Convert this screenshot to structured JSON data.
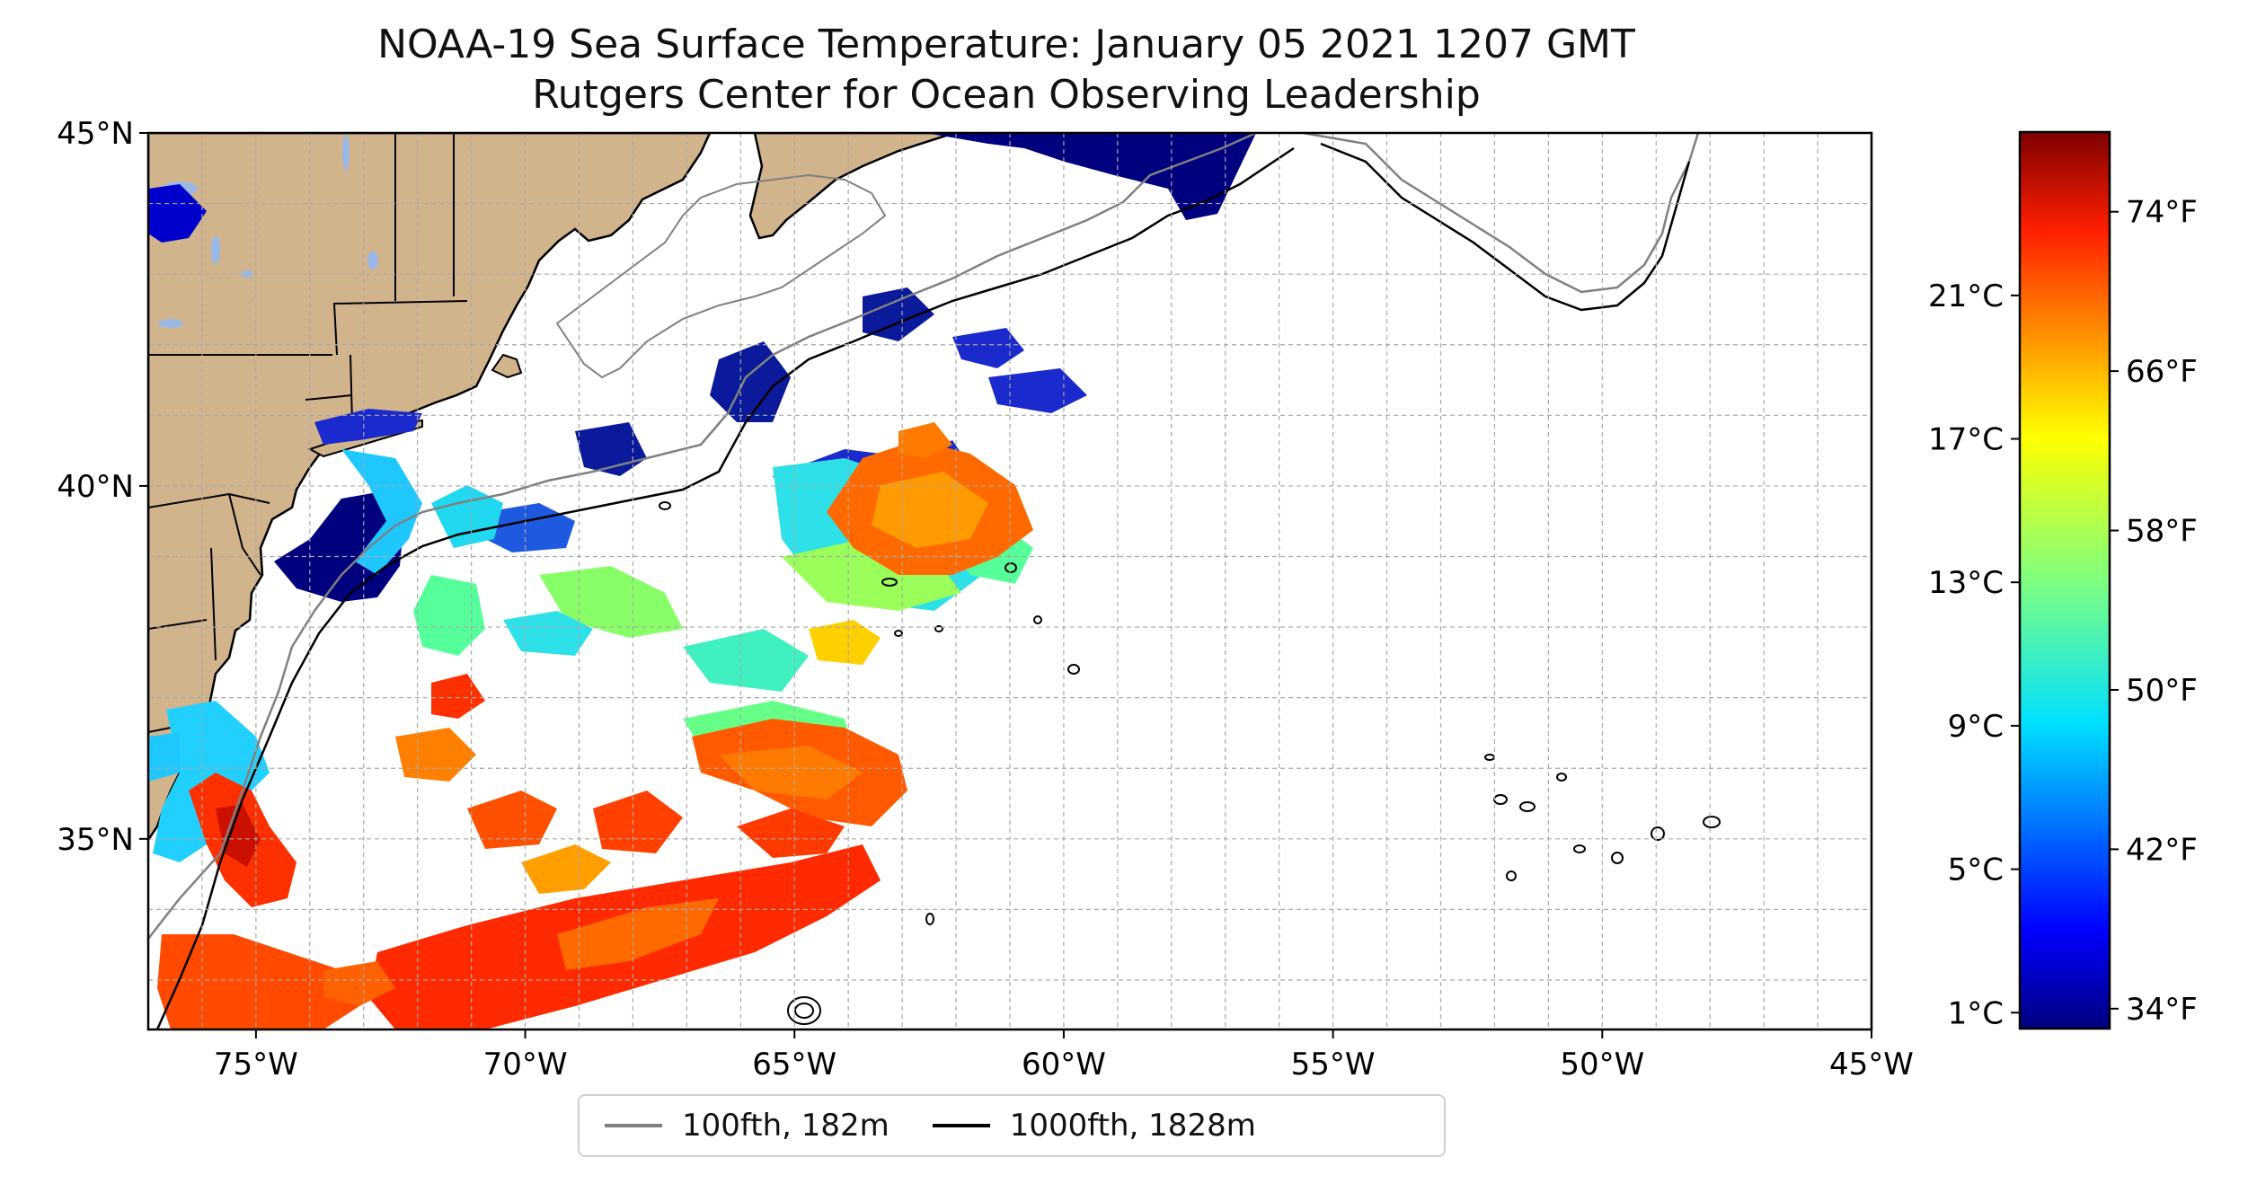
{
  "title": {
    "line1": "NOAA-19 Sea Surface Temperature: January 05 2021 1207 GMT",
    "line2": "Rutgers Center for Ocean Observing Leadership"
  },
  "map": {
    "lon_range": [
      -77,
      -45
    ],
    "lat_range": [
      32.3,
      45
    ],
    "lat_ticks": [
      {
        "value": 45,
        "label": "45°N"
      },
      {
        "value": 40,
        "label": "40°N"
      },
      {
        "value": 35,
        "label": "35°N"
      }
    ],
    "lon_ticks": [
      {
        "value": -75,
        "label": "75°W"
      },
      {
        "value": -70,
        "label": "70°W"
      },
      {
        "value": -65,
        "label": "65°W"
      },
      {
        "value": -60,
        "label": "60°W"
      },
      {
        "value": -55,
        "label": "55°W"
      },
      {
        "value": -50,
        "label": "50°W"
      },
      {
        "value": -45,
        "label": "45°W"
      }
    ],
    "grid": true,
    "land_color": "#d2b48c",
    "lake_color": "#9ab8e6"
  },
  "legend": {
    "items": [
      {
        "label": "100fth, 182m",
        "color": "#808080"
      },
      {
        "label": "1000fth, 1828m",
        "color": "#000000"
      }
    ]
  },
  "colorbar": {
    "colormap": "jet",
    "range_f": [
      33,
      78
    ],
    "celsius_ticks": [
      "1°C",
      "5°C",
      "9°C",
      "13°C",
      "17°C",
      "21°C"
    ],
    "fahrenheit_ticks": [
      "34°F",
      "42°F",
      "50°F",
      "58°F",
      "66°F",
      "74°F"
    ]
  }
}
